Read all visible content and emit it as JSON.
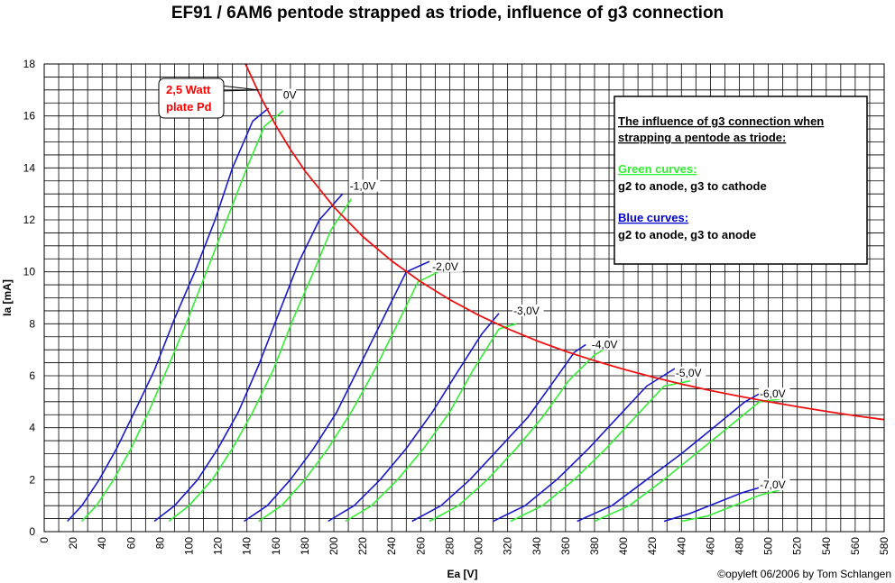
{
  "chart_data": {
    "type": "line",
    "title": "EF91 / 6AM6 pentode strapped as triode, influence of g3 connection",
    "xlabel": "Ea [V]",
    "ylabel": "Ia [mA]",
    "xlim": [
      0,
      580
    ],
    "ylim": [
      0,
      18
    ],
    "x_ticks": [
      "0",
      "20",
      "40",
      "60",
      "80",
      "100",
      "120",
      "140",
      "160",
      "180",
      "200",
      "220",
      "240",
      "260",
      "280",
      "300",
      "320",
      "340",
      "360",
      "380",
      "400",
      "420",
      "440",
      "460",
      "480",
      "500",
      "520",
      "540",
      "560",
      "580"
    ],
    "y_ticks": [
      "0",
      "2",
      "4",
      "6",
      "8",
      "10",
      "12",
      "14",
      "16",
      "18"
    ],
    "grid": true,
    "colors": {
      "green": "#33ee33",
      "blue": "#1a1acc",
      "pd": "#ee1111",
      "pd_label": "#ff0000",
      "note_green": "#33ee33",
      "note_blue": "#0000cc"
    },
    "series": [
      {
        "grid_label": "0V",
        "color": "green",
        "points": [
          [
            26,
            0.4
          ],
          [
            36,
            1.0
          ],
          [
            48,
            2.0
          ],
          [
            60,
            3.2
          ],
          [
            72,
            4.6
          ],
          [
            86,
            6.4
          ],
          [
            98,
            8.0
          ],
          [
            112,
            10.0
          ],
          [
            126,
            12.0
          ],
          [
            140,
            14.0
          ],
          [
            152,
            15.6
          ],
          [
            165,
            16.2
          ]
        ]
      },
      {
        "grid_label": "0V",
        "color": "blue",
        "points": [
          [
            16,
            0.4
          ],
          [
            26,
            1.0
          ],
          [
            38,
            2.0
          ],
          [
            50,
            3.2
          ],
          [
            64,
            4.8
          ],
          [
            76,
            6.2
          ],
          [
            90,
            8.2
          ],
          [
            104,
            10.0
          ],
          [
            118,
            12.0
          ],
          [
            130,
            14.0
          ],
          [
            144,
            15.8
          ],
          [
            155,
            16.3
          ]
        ]
      },
      {
        "grid_label": "-1,0V",
        "color": "green",
        "points": [
          [
            86,
            0.4
          ],
          [
            100,
            1.0
          ],
          [
            116,
            2.0
          ],
          [
            130,
            3.2
          ],
          [
            144,
            4.6
          ],
          [
            158,
            6.2
          ],
          [
            172,
            8.2
          ],
          [
            186,
            10.0
          ],
          [
            198,
            11.6
          ],
          [
            212,
            12.8
          ]
        ]
      },
      {
        "grid_label": "-1,0V",
        "color": "blue",
        "points": [
          [
            76,
            0.4
          ],
          [
            90,
            1.0
          ],
          [
            106,
            2.0
          ],
          [
            120,
            3.2
          ],
          [
            134,
            4.6
          ],
          [
            148,
            6.4
          ],
          [
            162,
            8.4
          ],
          [
            176,
            10.4
          ],
          [
            190,
            12.0
          ],
          [
            206,
            13.0
          ]
        ]
      },
      {
        "grid_label": "-2,0V",
        "color": "green",
        "points": [
          [
            148,
            0.4
          ],
          [
            164,
            1.0
          ],
          [
            180,
            2.0
          ],
          [
            196,
            3.2
          ],
          [
            212,
            4.6
          ],
          [
            228,
            6.2
          ],
          [
            244,
            8.0
          ],
          [
            258,
            9.6
          ],
          [
            272,
            10.0
          ]
        ]
      },
      {
        "grid_label": "-2,0V",
        "color": "blue",
        "points": [
          [
            138,
            0.4
          ],
          [
            154,
            1.0
          ],
          [
            170,
            2.0
          ],
          [
            186,
            3.2
          ],
          [
            202,
            4.6
          ],
          [
            218,
            6.4
          ],
          [
            234,
            8.2
          ],
          [
            250,
            10.0
          ],
          [
            266,
            10.4
          ]
        ]
      },
      {
        "grid_label": "-3,0V",
        "color": "green",
        "points": [
          [
            208,
            0.4
          ],
          [
            226,
            1.0
          ],
          [
            244,
            2.0
          ],
          [
            262,
            3.2
          ],
          [
            280,
            4.6
          ],
          [
            296,
            6.2
          ],
          [
            314,
            7.8
          ],
          [
            326,
            8.0
          ]
        ]
      },
      {
        "grid_label": "-3,0V",
        "color": "blue",
        "points": [
          [
            196,
            0.4
          ],
          [
            214,
            1.0
          ],
          [
            232,
            2.0
          ],
          [
            250,
            3.2
          ],
          [
            268,
            4.6
          ],
          [
            286,
            6.2
          ],
          [
            302,
            7.6
          ],
          [
            314,
            8.4
          ]
        ]
      },
      {
        "grid_label": "-4,0V",
        "color": "green",
        "points": [
          [
            266,
            0.4
          ],
          [
            286,
            1.0
          ],
          [
            306,
            2.0
          ],
          [
            326,
            3.2
          ],
          [
            344,
            4.4
          ],
          [
            362,
            5.8
          ],
          [
            380,
            6.8
          ],
          [
            386,
            7.0
          ]
        ]
      },
      {
        "grid_label": "-4,0V",
        "color": "blue",
        "points": [
          [
            254,
            0.4
          ],
          [
            274,
            1.0
          ],
          [
            294,
            2.0
          ],
          [
            314,
            3.2
          ],
          [
            334,
            4.4
          ],
          [
            352,
            5.8
          ],
          [
            366,
            6.9
          ],
          [
            374,
            7.2
          ]
        ]
      },
      {
        "grid_label": "-5,0V",
        "color": "green",
        "points": [
          [
            322,
            0.4
          ],
          [
            344,
            1.0
          ],
          [
            366,
            2.0
          ],
          [
            388,
            3.2
          ],
          [
            408,
            4.4
          ],
          [
            428,
            5.6
          ],
          [
            446,
            5.8
          ]
        ]
      },
      {
        "grid_label": "-5,0V",
        "color": "blue",
        "points": [
          [
            310,
            0.4
          ],
          [
            332,
            1.0
          ],
          [
            354,
            2.0
          ],
          [
            376,
            3.2
          ],
          [
            396,
            4.4
          ],
          [
            416,
            5.6
          ],
          [
            436,
            6.3
          ]
        ]
      },
      {
        "grid_label": "-6,0V",
        "color": "green",
        "points": [
          [
            380,
            0.4
          ],
          [
            404,
            1.0
          ],
          [
            428,
            2.0
          ],
          [
            450,
            3.0
          ],
          [
            472,
            4.0
          ],
          [
            494,
            5.0
          ],
          [
            508,
            5.1
          ]
        ]
      },
      {
        "grid_label": "-6,0V",
        "color": "blue",
        "points": [
          [
            368,
            0.4
          ],
          [
            392,
            1.0
          ],
          [
            416,
            2.0
          ],
          [
            440,
            3.0
          ],
          [
            462,
            4.0
          ],
          [
            484,
            5.0
          ],
          [
            500,
            5.5
          ]
        ]
      },
      {
        "grid_label": "-7,0V",
        "color": "green",
        "points": [
          [
            440,
            0.4
          ],
          [
            458,
            0.6
          ],
          [
            476,
            1.0
          ],
          [
            494,
            1.4
          ],
          [
            508,
            1.6
          ]
        ]
      },
      {
        "grid_label": "-7,0V",
        "color": "blue",
        "points": [
          [
            428,
            0.4
          ],
          [
            446,
            0.7
          ],
          [
            464,
            1.1
          ],
          [
            482,
            1.5
          ],
          [
            500,
            1.8
          ]
        ]
      },
      {
        "name": "2,5 Watt plate Pd",
        "color": "pd",
        "points": [
          [
            139,
            18
          ],
          [
            150,
            16.67
          ],
          [
            160,
            15.63
          ],
          [
            170,
            14.71
          ],
          [
            180,
            13.89
          ],
          [
            200,
            12.5
          ],
          [
            220,
            11.36
          ],
          [
            240,
            10.42
          ],
          [
            260,
            9.62
          ],
          [
            280,
            8.93
          ],
          [
            300,
            8.33
          ],
          [
            320,
            7.81
          ],
          [
            340,
            7.35
          ],
          [
            360,
            6.94
          ],
          [
            380,
            6.58
          ],
          [
            400,
            6.25
          ],
          [
            420,
            5.95
          ],
          [
            440,
            5.68
          ],
          [
            460,
            5.43
          ],
          [
            480,
            5.21
          ],
          [
            500,
            5.0
          ],
          [
            520,
            4.81
          ],
          [
            540,
            4.63
          ],
          [
            560,
            4.46
          ],
          [
            580,
            4.31
          ]
        ]
      }
    ],
    "curve_labels": [
      {
        "text": "0V",
        "x": 165,
        "y": 16.8
      },
      {
        "text": "-1,0V",
        "x": 211,
        "y": 13.3
      },
      {
        "text": "-2,0V",
        "x": 268,
        "y": 10.2
      },
      {
        "text": "-3,0V",
        "x": 324,
        "y": 8.5
      },
      {
        "text": "-4,0V",
        "x": 378,
        "y": 7.2
      },
      {
        "text": "-5,0V",
        "x": 436,
        "y": 6.1
      },
      {
        "text": "-6,0V",
        "x": 494,
        "y": 5.3
      },
      {
        "text": "-7,0V",
        "x": 494,
        "y": 1.8
      }
    ],
    "callout": {
      "lines": [
        "2,5 Watt",
        "plate Pd"
      ],
      "target": [
        148,
        17.0
      ]
    },
    "note": {
      "heading_lines": [
        "The influence of g3 connection when",
        "strapping a pentode as triode:"
      ],
      "green_title": "Green curves:",
      "green_text": "g2 to anode, g3 to cathode",
      "blue_title": "Blue curves:",
      "blue_text": "g2 to anode, g3 to anode"
    },
    "credit": "©opyleft 06/2006 by Tom Schlangen"
  }
}
